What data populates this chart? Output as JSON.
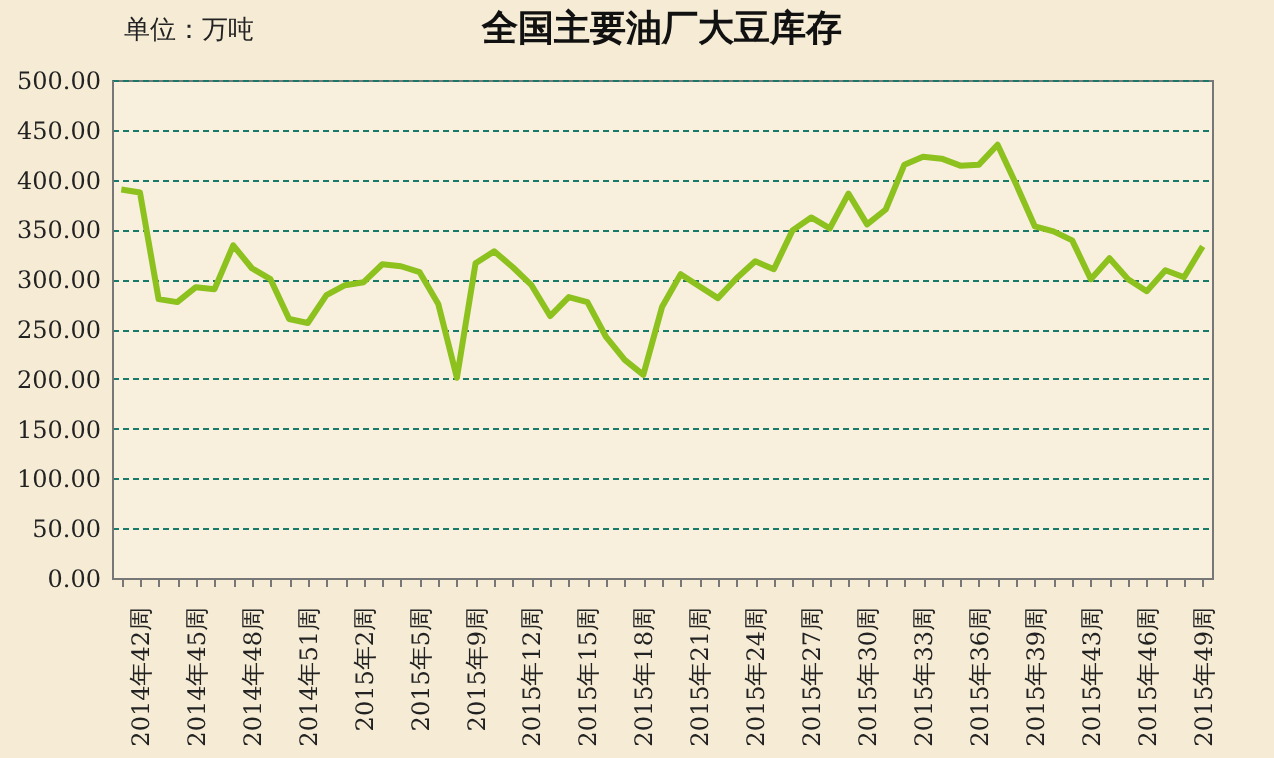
{
  "chart_data": {
    "type": "line",
    "title": "全国主要油厂大豆库存",
    "annotations": [
      "单位：万吨"
    ],
    "categories": [
      null,
      "2014年42周",
      null,
      null,
      "2014年45周",
      null,
      null,
      "2014年48周",
      null,
      null,
      "2014年51周",
      null,
      null,
      "2015年2周",
      null,
      null,
      "2015年5周",
      null,
      null,
      "2015年9周",
      null,
      null,
      "2015年12周",
      null,
      null,
      "2015年15周",
      null,
      null,
      "2015年18周",
      null,
      null,
      "2015年21周",
      null,
      null,
      "2015年24周",
      null,
      null,
      "2015年27周",
      null,
      null,
      "2015年30周",
      null,
      null,
      "2015年33周",
      null,
      null,
      "2015年36周",
      null,
      null,
      "2015年39周",
      null,
      null,
      "2015年43周",
      null,
      null,
      "2015年46周",
      null,
      null,
      "2015年49周"
    ],
    "series": [
      {
        "color": "#8cc11e",
        "values": [
          390,
          387,
          280,
          277,
          292,
          290,
          334,
          311,
          300,
          260,
          256,
          284,
          294,
          297,
          315,
          313,
          307,
          275,
          201,
          316,
          328,
          312,
          294,
          263,
          282,
          277,
          242,
          219,
          204,
          272,
          305,
          293,
          281,
          301,
          318,
          310,
          349,
          362,
          351,
          386,
          355,
          370,
          415,
          423,
          421,
          414,
          415,
          435,
          395,
          353,
          348,
          339,
          300,
          321,
          300,
          288,
          309,
          302,
          333
        ]
      }
    ],
    "ylim": [
      0,
      500
    ],
    "yticks": [
      {
        "value": 0,
        "label": "0.00"
      },
      {
        "value": 50,
        "label": "50.00"
      },
      {
        "value": 100,
        "label": "100.00"
      },
      {
        "value": 150,
        "label": "150.00"
      },
      {
        "value": 200,
        "label": "200.00"
      },
      {
        "value": 250,
        "label": "250.00"
      },
      {
        "value": 300,
        "label": "300.00"
      },
      {
        "value": 350,
        "label": "350.00"
      },
      {
        "value": 400,
        "label": "400.00"
      },
      {
        "value": 450,
        "label": "450.00"
      },
      {
        "value": 500,
        "label": "500.00"
      }
    ],
    "grid": "y",
    "legend": false,
    "marker": "none",
    "line_style": "solid"
  }
}
